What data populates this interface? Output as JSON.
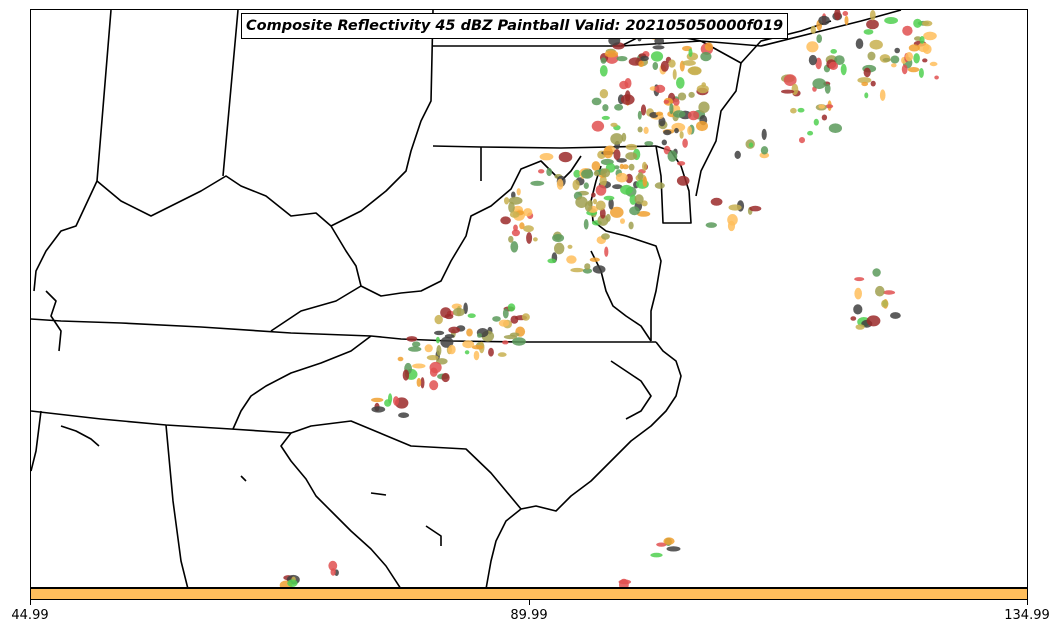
{
  "title": "Composite Reflectivity 45 dBZ Paintball Valid: 202105050000f019",
  "colorbar": {
    "color": "#ffbe5c",
    "ticks": [
      "44.99",
      "89.99",
      "134.99"
    ],
    "range": [
      44.99,
      134.99
    ]
  },
  "map": {
    "region": "Mid-Atlantic / Southeast United States",
    "boundary_color": "#000000",
    "paintball_colors": [
      "#5a9a5a",
      "#e05050",
      "#f0a030",
      "#a0a050",
      "#404040",
      "#9b2a2a",
      "#50d050",
      "#ffbe5c",
      "#c8b050"
    ]
  }
}
